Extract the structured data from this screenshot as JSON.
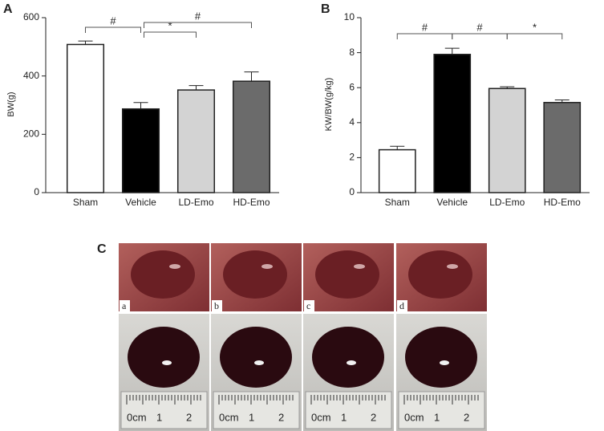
{
  "chart_data": [
    {
      "type": "bar",
      "panel_label": "A",
      "ylabel": "BW(g)",
      "categories": [
        "Sham",
        "Vehicle",
        "LD-Emo",
        "HD-Emo"
      ],
      "values": [
        508,
        287,
        352,
        382
      ],
      "errors": [
        12,
        22,
        15,
        32
      ],
      "colors": [
        "#ffffff",
        "#000000",
        "#d3d3d3",
        "#6b6b6b"
      ],
      "ylim": [
        0,
        600
      ],
      "yticks": [
        0,
        200,
        400,
        600
      ],
      "annotations": [
        {
          "text": "#",
          "between": [
            "Sham",
            "Vehicle"
          ]
        },
        {
          "text": "*",
          "between": [
            "Vehicle",
            "LD-Emo"
          ]
        },
        {
          "text": "#",
          "between": [
            "Vehicle",
            "HD-Emo"
          ]
        }
      ]
    },
    {
      "type": "bar",
      "panel_label": "B",
      "ylabel": "KW/BW(g/kg)",
      "categories": [
        "Sham",
        "Vehicle",
        "LD-Emo",
        "HD-Emo"
      ],
      "values": [
        2.45,
        7.9,
        5.95,
        5.15
      ],
      "errors": [
        0.2,
        0.35,
        0.1,
        0.15
      ],
      "colors": [
        "#ffffff",
        "#000000",
        "#d3d3d3",
        "#6b6b6b"
      ],
      "ylim": [
        0,
        10
      ],
      "yticks": [
        0,
        2,
        4,
        6,
        8,
        10
      ],
      "annotations": [
        {
          "text": "#",
          "between": [
            "Sham",
            "Vehicle"
          ]
        },
        {
          "text": "#",
          "between": [
            "Vehicle",
            "LD-Emo"
          ]
        },
        {
          "text": "*",
          "between": [
            "LD-Emo",
            "HD-Emo"
          ]
        }
      ]
    }
  ],
  "photo_panel": {
    "label": "C",
    "labels": [
      "a",
      "b",
      "c",
      "d"
    ],
    "ruler_labels": [
      "0cm",
      "1",
      "2"
    ]
  }
}
